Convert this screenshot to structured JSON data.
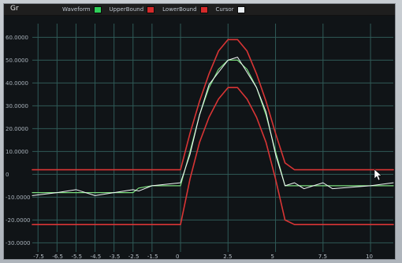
{
  "window": {
    "title": "Gr"
  },
  "legend": [
    {
      "name": "Waveform",
      "color": "#2fd05a"
    },
    {
      "name": "UpperBound",
      "color": "#d52a2a"
    },
    {
      "name": "LowerBound",
      "color": "#d52a2a"
    },
    {
      "name": "Cursor",
      "color": "#e9eef2"
    }
  ],
  "colors": {
    "plot_bg": "#101417",
    "grid": "#2f5a57",
    "limit": "#d93535",
    "trace_green": "#7bdd7d",
    "trace_white": "#f2f6f7"
  },
  "chart_data": {
    "type": "line",
    "title": "",
    "xlabel": "",
    "ylabel": "",
    "xlim": [
      -7.8,
      11.2
    ],
    "ylim": [
      -34,
      66
    ],
    "grid": true,
    "y_ticks": [
      "60.0000",
      "50.0000",
      "40.0000",
      "30.0000",
      "20.0000",
      "10.0000",
      "0",
      "-10.0000",
      "-20.0000",
      "-30.0000"
    ],
    "x_ticks": [
      "-7.5",
      "-6.5",
      "-5.5",
      "-4.5",
      "-3.5",
      "-2.5",
      "-1.5",
      "0",
      "2.5",
      "5",
      "7.5",
      "10"
    ],
    "series": [
      {
        "name": "Waveform",
        "x": [
          -7.8,
          -6.5,
          -5.5,
          -4.5,
          -3.5,
          -2.5,
          -2.2,
          -1.5,
          0,
          0.5,
          1,
          1.5,
          2,
          2.5,
          3,
          3.5,
          4,
          4.5,
          5,
          5.5,
          6,
          6.5,
          7,
          7.5,
          8,
          10,
          11.2
        ],
        "y": [
          -8,
          -8,
          -8,
          -8,
          -8,
          -8,
          -6,
          -5,
          -5,
          10,
          26,
          38,
          46,
          50,
          50,
          46,
          38,
          26,
          10,
          -5,
          -5,
          -5,
          -5,
          -5,
          -5,
          -5,
          -5
        ]
      },
      {
        "name": "UpperBound",
        "x": [
          -7.8,
          -6.5,
          -5.5,
          -4.5,
          -3.5,
          -2.5,
          -1.5,
          0,
          0.5,
          1,
          1.5,
          2,
          2.5,
          3,
          3.5,
          4,
          4.5,
          5,
          5.5,
          6,
          6.5,
          7,
          7.5,
          8,
          10,
          11.2
        ],
        "y": [
          2,
          2,
          2,
          2,
          2,
          2,
          2,
          2,
          18,
          32,
          44,
          54,
          59,
          59,
          54,
          44,
          32,
          18,
          5,
          2,
          2,
          2,
          2,
          2,
          2,
          2
        ]
      },
      {
        "name": "LowerBound",
        "x": [
          -7.8,
          -6.5,
          -5.5,
          -4.5,
          -3.5,
          -2.5,
          -1.5,
          0,
          0.5,
          1,
          1.5,
          2,
          2.5,
          3,
          3.5,
          4,
          4.5,
          5,
          5.5,
          6,
          6.5,
          7,
          7.5,
          8,
          10,
          11.2
        ],
        "y": [
          -22,
          -22,
          -22,
          -22,
          -22,
          -22,
          -22,
          -22,
          -2,
          14,
          25,
          33,
          38,
          38,
          33,
          25,
          14,
          -2,
          -20,
          -22,
          -22,
          -22,
          -22,
          -22,
          -22,
          -22
        ]
      }
    ]
  }
}
